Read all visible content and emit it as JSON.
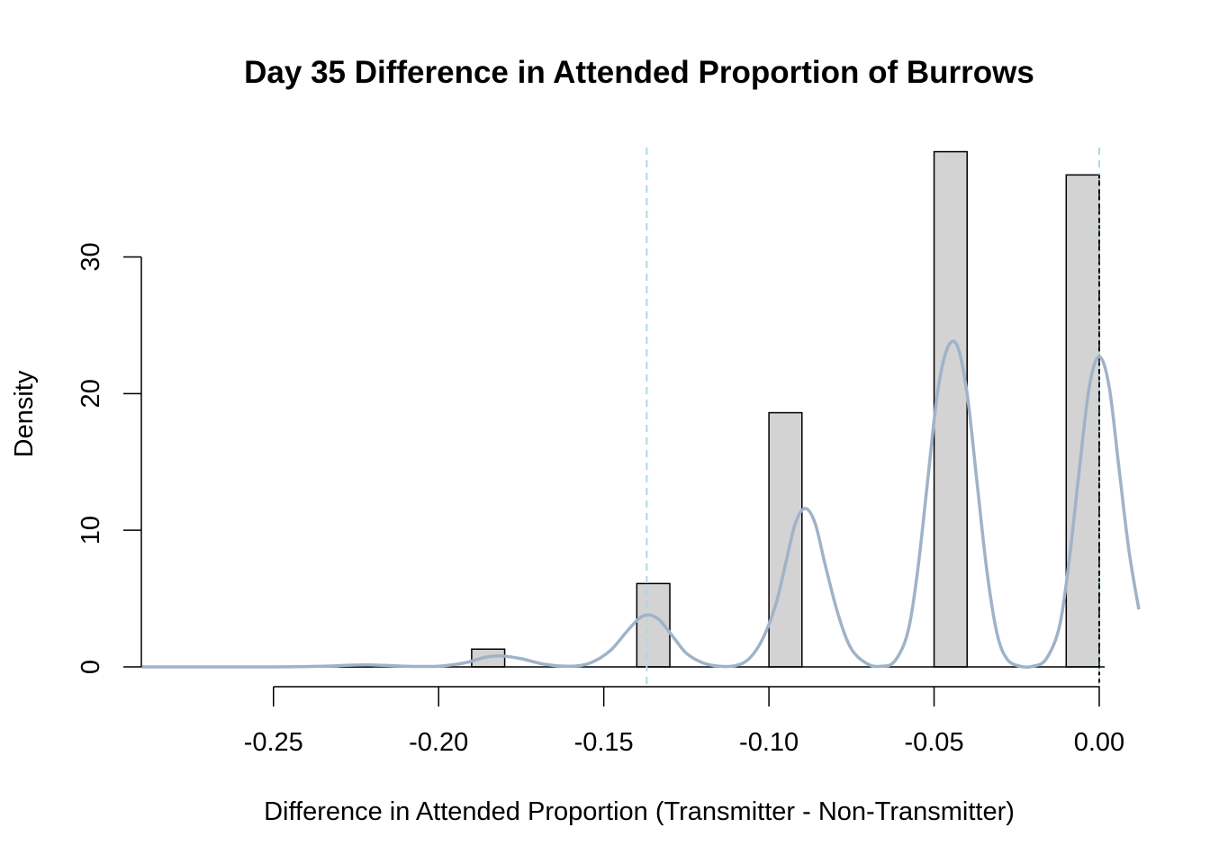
{
  "chart_data": {
    "type": "bar",
    "title": "Day 35 Difference in Attended Proportion of Burrows",
    "xlabel": "Difference in Attended Proportion (Transmitter - Non-Transmitter)",
    "ylabel": "Density",
    "xlim": [
      -0.29,
      0.012
    ],
    "ylim": [
      0,
      38
    ],
    "x_ticks": [
      -0.25,
      -0.2,
      -0.15,
      -0.1,
      -0.05,
      0.0
    ],
    "x_tick_labels": [
      "-0.25",
      "-0.20",
      "-0.15",
      "-0.10",
      "-0.05",
      "0.00"
    ],
    "y_ticks": [
      0,
      10,
      20,
      30
    ],
    "y_tick_labels": [
      "0",
      "10",
      "20",
      "30"
    ],
    "histogram": {
      "bins": [
        {
          "x0": -0.23,
          "x1": -0.22,
          "density": 0.1
        },
        {
          "x0": -0.19,
          "x1": -0.18,
          "density": 1.3
        },
        {
          "x0": -0.14,
          "x1": -0.13,
          "density": 6.1
        },
        {
          "x0": -0.1,
          "x1": -0.09,
          "density": 18.6
        },
        {
          "x0": -0.05,
          "x1": -0.04,
          "density": 37.7
        },
        {
          "x0": -0.01,
          "x1": 0.0,
          "density": 36.0
        }
      ],
      "fill": "#d3d3d3",
      "stroke": "#000000"
    },
    "density_curve": {
      "color": "#9fb3c8",
      "x": [
        -0.29,
        -0.25,
        -0.235,
        -0.222,
        -0.21,
        -0.2,
        -0.192,
        -0.186,
        -0.181,
        -0.175,
        -0.168,
        -0.16,
        -0.154,
        -0.148,
        -0.143,
        -0.139,
        -0.136,
        -0.133,
        -0.129,
        -0.125,
        -0.12,
        -0.115,
        -0.11,
        -0.106,
        -0.102,
        -0.098,
        -0.095,
        -0.092,
        -0.089,
        -0.086,
        -0.083,
        -0.079,
        -0.075,
        -0.07,
        -0.066,
        -0.062,
        -0.058,
        -0.055,
        -0.052,
        -0.049,
        -0.046,
        -0.043,
        -0.04,
        -0.037,
        -0.034,
        -0.031,
        -0.028,
        -0.024,
        -0.02,
        -0.016,
        -0.012,
        -0.009,
        -0.006,
        -0.003,
        0.0,
        0.003,
        0.006,
        0.009,
        0.012
      ],
      "y": [
        0,
        0,
        0.05,
        0.15,
        0.05,
        0.05,
        0.3,
        0.7,
        0.8,
        0.6,
        0.2,
        0.05,
        0.3,
        1.2,
        2.6,
        3.6,
        3.8,
        3.4,
        2.2,
        1.0,
        0.3,
        0.05,
        0.1,
        0.6,
        2.0,
        4.5,
        7.5,
        10.5,
        11.6,
        10.5,
        7.5,
        3.8,
        1.3,
        0.2,
        0.05,
        0.4,
        2.5,
        7.0,
        13.5,
        20.0,
        23.3,
        23.5,
        20.0,
        13.5,
        7.0,
        2.5,
        0.6,
        0.05,
        0.05,
        0.6,
        3.0,
        8.0,
        14.5,
        20.5,
        22.7,
        20.5,
        14.5,
        8.5,
        4.2
      ]
    },
    "reference_lines": [
      {
        "x": -0.137,
        "color": "#add8e6",
        "style": "dashed"
      },
      {
        "x": 0.0,
        "color": "#add8e6",
        "style": "dashed"
      },
      {
        "x": 0.0,
        "color": "#000000",
        "style": "dotted",
        "ymax": 36.0
      }
    ],
    "grid": false,
    "legend": "none"
  }
}
